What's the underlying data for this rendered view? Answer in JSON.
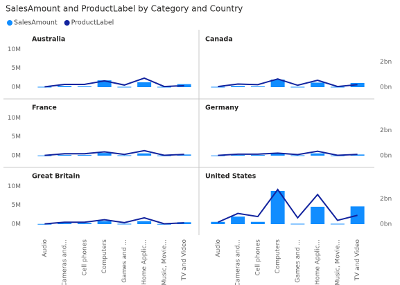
{
  "chart_data": {
    "type": "bar_line",
    "title": "SalesAmount and ProductLabel by Category and Country",
    "series": [
      {
        "name": "SalesAmount",
        "color": "#118dff"
      },
      {
        "name": "ProductLabel",
        "color": "#12239e",
        "axis": "y2"
      }
    ],
    "categories": [
      "Audio",
      "Cameras and...",
      "Cell phones",
      "Computers",
      "Games and ...",
      "Home Applic...",
      "Music, Movie...",
      "TV and Video"
    ],
    "ylim": [
      0,
      11000000
    ],
    "yticks": [
      {
        "value": 0,
        "label": "0M"
      },
      {
        "value": 5000000,
        "label": "5M"
      },
      {
        "value": 10000000,
        "label": "10M"
      }
    ],
    "y2lim": [
      0,
      3300000000
    ],
    "y2ticks": [
      {
        "value": 0,
        "label": "0bn"
      },
      {
        "value": 2000000000,
        "label": "2bn"
      }
    ],
    "panels": [
      {
        "title": "Australia",
        "series": [
          {
            "values": [
              100000,
              300000,
              200000,
              1800000,
              100000,
              1300000,
              100000,
              800000
            ]
          },
          {
            "values": [
              30000000,
              220000000,
              220000000,
              500000000,
              170000000,
              720000000,
              50000000,
              120000000
            ]
          }
        ]
      },
      {
        "title": "Canada",
        "series": [
          {
            "values": [
              100000,
              300000,
              200000,
              2000000,
              100000,
              1200000,
              100000,
              1100000
            ]
          },
          {
            "values": [
              50000000,
              250000000,
              200000000,
              650000000,
              150000000,
              550000000,
              50000000,
              200000000
            ]
          }
        ]
      },
      {
        "title": "France",
        "series": [
          {
            "values": [
              50000,
              200000,
              200000,
              700000,
              100000,
              600000,
              50000,
              300000
            ]
          },
          {
            "values": [
              20000000,
              150000000,
              150000000,
              300000000,
              100000000,
              400000000,
              30000000,
              100000000
            ]
          }
        ]
      },
      {
        "title": "Germany",
        "series": [
          {
            "values": [
              50000,
              200000,
              200000,
              500000,
              100000,
              600000,
              50000,
              300000
            ]
          },
          {
            "values": [
              20000000,
              120000000,
              120000000,
              200000000,
              80000000,
              350000000,
              30000000,
              100000000
            ]
          }
        ]
      },
      {
        "title": "Great Britain",
        "series": [
          {
            "values": [
              50000,
              300000,
              300000,
              800000,
              100000,
              800000,
              50000,
              500000
            ]
          },
          {
            "values": [
              20000000,
              150000000,
              150000000,
              350000000,
              120000000,
              500000000,
              30000000,
              100000000
            ]
          }
        ]
      },
      {
        "title": "United States",
        "series": [
          {
            "values": [
              600000,
              2000000,
              600000,
              8800000,
              100000,
              4600000,
              100000,
              4700000
            ]
          },
          {
            "values": [
              150000000,
              850000000,
              600000000,
              2750000000,
              500000000,
              2350000000,
              300000000,
              700000000
            ]
          }
        ]
      }
    ]
  }
}
